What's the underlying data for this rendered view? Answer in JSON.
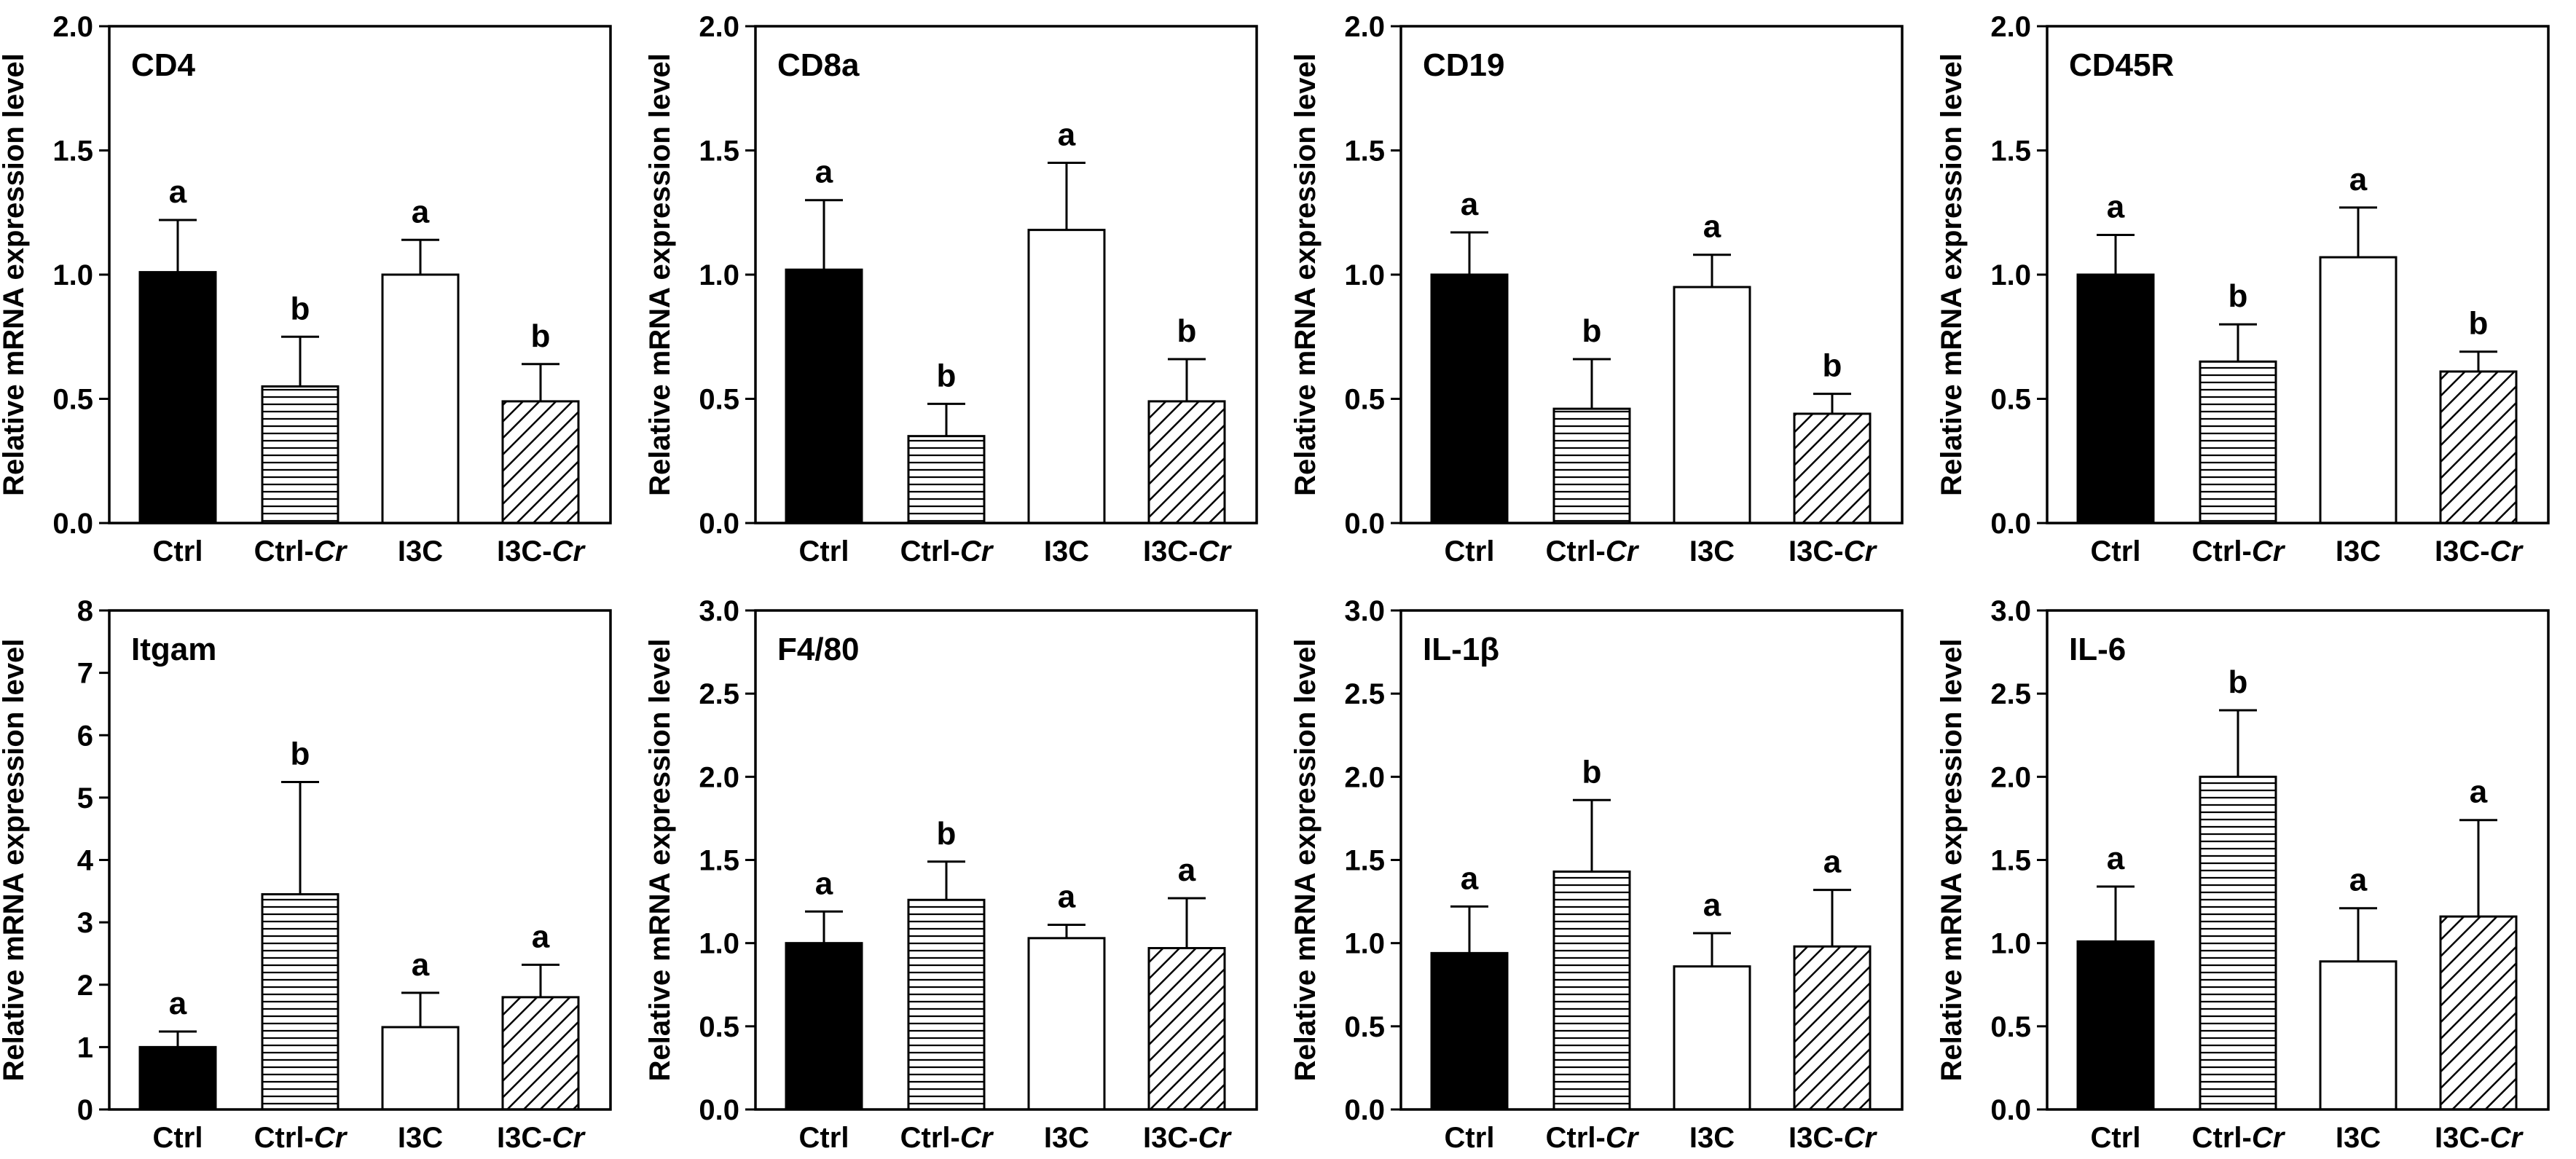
{
  "figure": {
    "ylabel": "Relative mRNA expression level",
    "categories": [
      {
        "main": "Ctrl",
        "italic": ""
      },
      {
        "main": "Ctrl-",
        "italic": "Cr"
      },
      {
        "main": "I3C",
        "italic": ""
      },
      {
        "main": "I3C-",
        "italic": "Cr"
      }
    ],
    "fill_patterns": [
      "solid-black",
      "horizontal-lines",
      "white",
      "diagonal-hatch"
    ],
    "colors": {
      "bar_outline": "#000000",
      "solid": "#000000",
      "background": "#ffffff"
    }
  },
  "chart_data": [
    {
      "type": "bar",
      "title": "CD4",
      "ylim": [
        0,
        2.0
      ],
      "yticks": [
        "0.0",
        "0.5",
        "1.0",
        "1.5",
        "2.0"
      ],
      "values": [
        1.01,
        0.55,
        1.0,
        0.49
      ],
      "errors": [
        0.21,
        0.2,
        0.14,
        0.15
      ],
      "letters": [
        "a",
        "b",
        "a",
        "b"
      ]
    },
    {
      "type": "bar",
      "title": "CD8a",
      "ylim": [
        0,
        2.0
      ],
      "yticks": [
        "0.0",
        "0.5",
        "1.0",
        "1.5",
        "2.0"
      ],
      "values": [
        1.02,
        0.35,
        1.18,
        0.49
      ],
      "errors": [
        0.28,
        0.13,
        0.27,
        0.17
      ],
      "letters": [
        "a",
        "b",
        "a",
        "b"
      ]
    },
    {
      "type": "bar",
      "title": "CD19",
      "ylim": [
        0,
        2.0
      ],
      "yticks": [
        "0.0",
        "0.5",
        "1.0",
        "1.5",
        "2.0"
      ],
      "values": [
        1.0,
        0.46,
        0.95,
        0.44
      ],
      "errors": [
        0.17,
        0.2,
        0.13,
        0.08
      ],
      "letters": [
        "a",
        "b",
        "a",
        "b"
      ]
    },
    {
      "type": "bar",
      "title": "CD45R",
      "ylim": [
        0,
        2.0
      ],
      "yticks": [
        "0.0",
        "0.5",
        "1.0",
        "1.5",
        "2.0"
      ],
      "values": [
        1.0,
        0.65,
        1.07,
        0.61
      ],
      "errors": [
        0.16,
        0.15,
        0.2,
        0.08
      ],
      "letters": [
        "a",
        "b",
        "a",
        "b"
      ]
    },
    {
      "type": "bar",
      "title": "Itgam",
      "ylim": [
        0,
        8
      ],
      "yticks": [
        "0",
        "1",
        "2",
        "3",
        "4",
        "5",
        "6",
        "7",
        "8"
      ],
      "values": [
        1.0,
        3.45,
        1.32,
        1.8
      ],
      "errors": [
        0.25,
        1.8,
        0.55,
        0.52
      ],
      "letters": [
        "a",
        "b",
        "a",
        "a"
      ]
    },
    {
      "type": "bar",
      "title": "F4/80",
      "ylim": [
        0,
        3.0
      ],
      "yticks": [
        "0.0",
        "0.5",
        "1.0",
        "1.5",
        "2.0",
        "2.5",
        "3.0"
      ],
      "values": [
        1.0,
        1.26,
        1.03,
        0.97
      ],
      "errors": [
        0.19,
        0.23,
        0.08,
        0.3
      ],
      "letters": [
        "a",
        "b",
        "a",
        "a"
      ]
    },
    {
      "type": "bar",
      "title": "IL-1β",
      "ylim": [
        0,
        3.0
      ],
      "yticks": [
        "0.0",
        "0.5",
        "1.0",
        "1.5",
        "2.0",
        "2.5",
        "3.0"
      ],
      "values": [
        0.94,
        1.43,
        0.86,
        0.98
      ],
      "errors": [
        0.28,
        0.43,
        0.2,
        0.34
      ],
      "letters": [
        "a",
        "b",
        "a",
        "a"
      ]
    },
    {
      "type": "bar",
      "title": "IL-6",
      "ylim": [
        0,
        3.0
      ],
      "yticks": [
        "0.0",
        "0.5",
        "1.0",
        "1.5",
        "2.0",
        "2.5",
        "3.0"
      ],
      "values": [
        1.01,
        2.0,
        0.89,
        1.16
      ],
      "errors": [
        0.33,
        0.4,
        0.32,
        0.58
      ],
      "letters": [
        "a",
        "b",
        "a",
        "a"
      ]
    }
  ]
}
